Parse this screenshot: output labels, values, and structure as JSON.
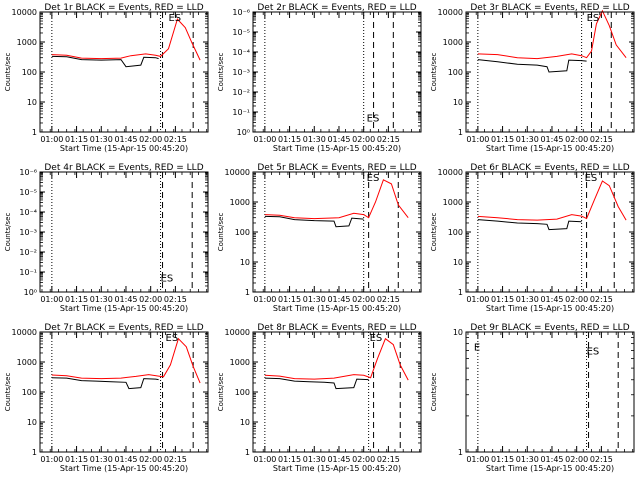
{
  "x_ticks": [
    "01:00",
    "01:15",
    "01:30",
    "01:45",
    "02:00",
    "02:15"
  ],
  "xlabel": "Start Time (15-Apr-15 00:45:20)",
  "ylabel": "Counts/sec",
  "marker_text": "ES",
  "colors": {
    "events": "#000000",
    "lld": "#ff0000"
  },
  "chart_data": [
    {
      "type": "line",
      "title": "Det 1r BLACK = Events, RED = LLD",
      "ylog": true,
      "ylim": [
        1,
        10000
      ],
      "y_ticks": [
        "1",
        "10",
        "100",
        "1000",
        "10000"
      ],
      "x_range_min": [
        1.0,
        2.55
      ],
      "dotted_x": [
        1.0,
        2.1
      ],
      "dashed_x": [
        2.12,
        2.43
      ],
      "series": [
        {
          "name": "Events",
          "x": [
            1.0,
            1.15,
            1.3,
            1.5,
            1.7,
            1.75,
            1.9,
            1.93,
            2.05,
            2.08
          ],
          "y": [
            330,
            320,
            260,
            250,
            260,
            150,
            170,
            310,
            300,
            280
          ]
        },
        {
          "name": "LLD",
          "x": [
            1.0,
            1.15,
            1.3,
            1.5,
            1.7,
            1.8,
            1.95,
            2.05,
            2.1,
            2.18,
            2.27,
            2.35,
            2.42,
            2.5
          ],
          "y": [
            380,
            360,
            290,
            280,
            290,
            350,
            400,
            360,
            330,
            600,
            5800,
            3000,
            900,
            250
          ]
        }
      ],
      "annotations": [
        {
          "text": "ES",
          "x": 2.18,
          "y": 10000
        }
      ]
    },
    {
      "type": "line",
      "title": "Det 2r BLACK = Events, RED = LLD",
      "ylog": true,
      "ylim": [
        1,
        1e-06
      ],
      "y_ticks": [
        "10⁰",
        "10⁻¹",
        "10⁻²",
        "10⁻³",
        "10⁻⁴",
        "10⁻⁵",
        "10⁻⁶"
      ],
      "x_range_min": [
        1.0,
        2.55
      ],
      "dotted_x": [
        1.0,
        2.0
      ],
      "dashed_x": [
        2.1,
        2.3
      ],
      "series": [],
      "annotations": [
        {
          "text": "ES",
          "x": 2.03,
          "y": 0.3
        }
      ]
    },
    {
      "type": "line",
      "title": "Det 3r BLACK = Events, RED = LLD",
      "ylog": true,
      "ylim": [
        1,
        10000
      ],
      "y_ticks": [
        "1",
        "10",
        "100",
        "1000",
        "10000"
      ],
      "x_range_min": [
        1.0,
        2.55
      ],
      "dotted_x": [
        1.0,
        2.05
      ],
      "dashed_x": [
        2.15,
        2.35
      ],
      "series": [
        {
          "name": "Events",
          "x": [
            1.0,
            1.2,
            1.4,
            1.6,
            1.7,
            1.72,
            1.9,
            1.92,
            2.05,
            2.1
          ],
          "y": [
            260,
            220,
            180,
            170,
            150,
            100,
            110,
            250,
            240,
            230
          ]
        },
        {
          "name": "LLD",
          "x": [
            1.0,
            1.2,
            1.4,
            1.6,
            1.8,
            1.95,
            2.05,
            2.1,
            2.15,
            2.2,
            2.26,
            2.33,
            2.4,
            2.5
          ],
          "y": [
            400,
            380,
            300,
            280,
            330,
            400,
            350,
            300,
            500,
            4000,
            11000,
            3500,
            800,
            300
          ]
        }
      ],
      "annotations": [
        {
          "text": "ES",
          "x": 2.1,
          "y": 10000
        }
      ]
    },
    {
      "type": "line",
      "title": "Det 4r BLACK = Events, RED = LLD",
      "ylog": true,
      "ylim": [
        1,
        1e-06
      ],
      "y_ticks": [
        "10⁰",
        "10⁻¹",
        "10⁻²",
        "10⁻³",
        "10⁻⁴",
        "10⁻⁵",
        "10⁻⁶"
      ],
      "x_range_min": [
        1.0,
        2.55
      ],
      "dotted_x": [
        1.0,
        2.1
      ],
      "dashed_x": [
        2.12,
        2.42
      ],
      "series": [],
      "annotations": [
        {
          "text": "ES",
          "x": 2.1,
          "y": 0.3
        }
      ]
    },
    {
      "type": "line",
      "title": "Det 5r BLACK = Events, RED = LLD",
      "ylog": true,
      "ylim": [
        1,
        10000
      ],
      "y_ticks": [
        "1",
        "10",
        "100",
        "1000",
        "10000"
      ],
      "x_range_min": [
        1.0,
        2.55
      ],
      "dotted_x": [
        1.0,
        2.0
      ],
      "dashed_x": [
        2.05,
        2.35
      ],
      "series": [
        {
          "name": "Events",
          "x": [
            1.0,
            1.15,
            1.3,
            1.5,
            1.7,
            1.72,
            1.85,
            1.88,
            2.0
          ],
          "y": [
            330,
            320,
            260,
            240,
            230,
            150,
            160,
            290,
            270
          ]
        },
        {
          "name": "LLD",
          "x": [
            1.0,
            1.15,
            1.3,
            1.5,
            1.75,
            1.9,
            2.0,
            2.05,
            2.12,
            2.2,
            2.28,
            2.35,
            2.45
          ],
          "y": [
            380,
            360,
            300,
            280,
            300,
            420,
            380,
            300,
            1000,
            5500,
            4000,
            800,
            300
          ]
        }
      ],
      "annotations": [
        {
          "text": "ES",
          "x": 2.03,
          "y": 10000
        }
      ]
    },
    {
      "type": "line",
      "title": "Det 6r BLACK = Events, RED = LLD",
      "ylog": true,
      "ylim": [
        1,
        10000
      ],
      "y_ticks": [
        "1",
        "10",
        "100",
        "1000",
        "10000"
      ],
      "x_range_min": [
        1.0,
        2.55
      ],
      "dotted_x": [
        1.0,
        2.05
      ],
      "dashed_x": [
        2.1,
        2.38
      ],
      "series": [
        {
          "name": "Events",
          "x": [
            1.0,
            1.2,
            1.4,
            1.6,
            1.7,
            1.72,
            1.9,
            1.92,
            2.05
          ],
          "y": [
            260,
            230,
            200,
            190,
            180,
            120,
            130,
            230,
            220
          ]
        },
        {
          "name": "LLD",
          "x": [
            1.0,
            1.2,
            1.4,
            1.6,
            1.8,
            1.95,
            2.05,
            2.1,
            2.18,
            2.26,
            2.33,
            2.42,
            2.5
          ],
          "y": [
            330,
            300,
            260,
            250,
            270,
            380,
            340,
            280,
            1200,
            5000,
            3500,
            700,
            250
          ]
        }
      ],
      "annotations": [
        {
          "text": "ES",
          "x": 2.08,
          "y": 10000
        }
      ]
    },
    {
      "type": "line",
      "title": "Det 7r BLACK = Events, RED = LLD",
      "ylog": true,
      "ylim": [
        1,
        10000
      ],
      "y_ticks": [
        "1",
        "10",
        "100",
        "1000",
        "10000"
      ],
      "x_range_min": [
        1.0,
        2.55
      ],
      "dotted_x": [
        1.0,
        2.1
      ],
      "dashed_x": [
        2.12,
        2.43
      ],
      "series": [
        {
          "name": "Events",
          "x": [
            1.0,
            1.15,
            1.3,
            1.45,
            1.6,
            1.75,
            1.78,
            1.9,
            1.93,
            2.05,
            2.08
          ],
          "y": [
            300,
            290,
            240,
            230,
            220,
            210,
            130,
            140,
            280,
            270,
            260
          ]
        },
        {
          "name": "LLD",
          "x": [
            1.0,
            1.15,
            1.3,
            1.5,
            1.7,
            1.85,
            1.98,
            2.08,
            2.13,
            2.2,
            2.28,
            2.36,
            2.43,
            2.5
          ],
          "y": [
            370,
            350,
            290,
            280,
            290,
            330,
            380,
            340,
            320,
            800,
            6000,
            3200,
            700,
            200
          ]
        }
      ],
      "annotations": [
        {
          "text": "ES",
          "x": 2.15,
          "y": 10000
        }
      ]
    },
    {
      "type": "line",
      "title": "Det 8r BLACK = Events, RED = LLD",
      "ylog": true,
      "ylim": [
        1,
        10000
      ],
      "y_ticks": [
        "1",
        "10",
        "100",
        "1000",
        "10000"
      ],
      "x_range_min": [
        1.0,
        2.55
      ],
      "dotted_x": [
        1.0,
        2.05
      ],
      "dashed_x": [
        2.1,
        2.37
      ],
      "series": [
        {
          "name": "Events",
          "x": [
            1.0,
            1.15,
            1.3,
            1.45,
            1.6,
            1.7,
            1.72,
            1.9,
            1.93,
            2.05
          ],
          "y": [
            290,
            280,
            230,
            220,
            210,
            200,
            130,
            140,
            270,
            260
          ]
        },
        {
          "name": "LLD",
          "x": [
            1.0,
            1.15,
            1.3,
            1.5,
            1.7,
            1.9,
            2.0,
            2.07,
            2.14,
            2.22,
            2.3,
            2.37,
            2.45
          ],
          "y": [
            360,
            340,
            280,
            270,
            290,
            380,
            360,
            300,
            1300,
            6000,
            3800,
            800,
            250
          ]
        }
      ],
      "annotations": [
        {
          "text": "ES",
          "x": 2.06,
          "y": 10000
        }
      ]
    },
    {
      "type": "line",
      "title": "Det 9r BLACK = Events, RED = LLD",
      "ylog": true,
      "ylim": [
        1,
        10
      ],
      "y_ticks": [
        "1",
        "10"
      ],
      "x_range_min": [
        1.0,
        2.55
      ],
      "dotted_x": [
        1.0,
        2.1
      ],
      "dashed_x": [
        2.12,
        2.42
      ],
      "series": [],
      "annotations": [
        {
          "text": "ES",
          "x": 2.1,
          "y": 6.5
        },
        {
          "text": "E",
          "x": 0.96,
          "y": 7
        }
      ]
    }
  ]
}
